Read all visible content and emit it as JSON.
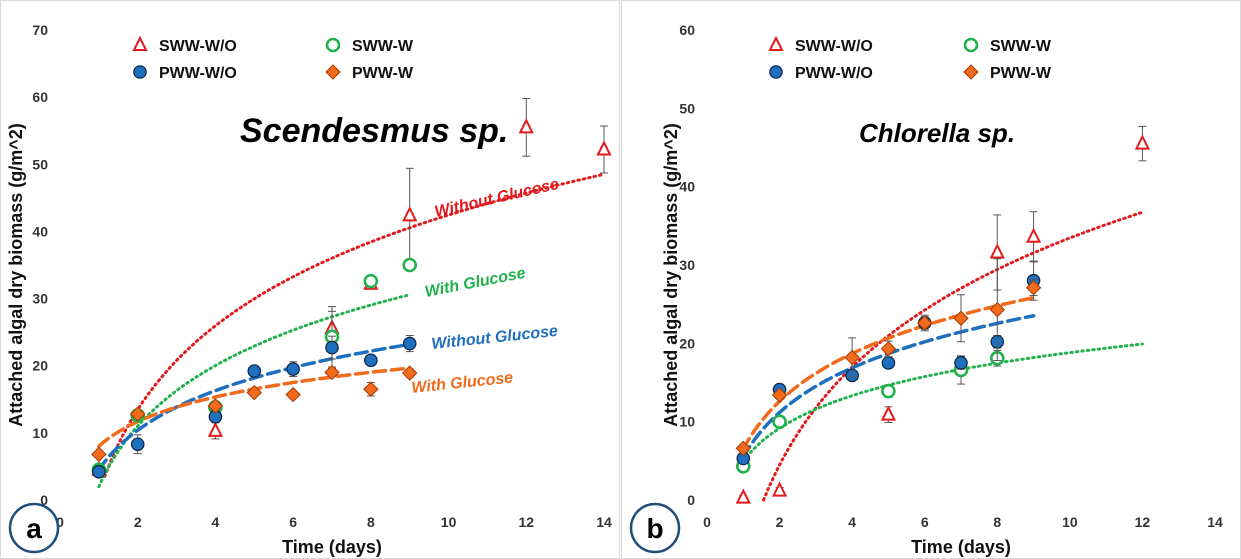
{
  "chart_data": [
    {
      "type": "scatter",
      "panel_label": "a",
      "title": "Scendesmus sp.",
      "xlabel": "Time (days)",
      "ylabel": "Attached algal dry biomass (g/m^2)",
      "xlim": [
        0,
        14
      ],
      "ylim": [
        0,
        70
      ],
      "xticks": [
        "0",
        "2",
        "4",
        "6",
        "8",
        "10",
        "12",
        "14"
      ],
      "yticks": [
        "0",
        "10",
        "20",
        "30",
        "40",
        "50",
        "60",
        "70"
      ],
      "grid": false,
      "legend_position": "top-left",
      "series": [
        {
          "name": "SWW-W/O",
          "marker": "triangle",
          "color": "#e31a1c",
          "points": [
            [
              1,
              4.5
            ],
            [
              4,
              10.3
            ],
            [
              7,
              25.6
            ],
            [
              8,
              32.2
            ],
            [
              9,
              42.4
            ],
            [
              12,
              55.5
            ],
            [
              14,
              52.2
            ]
          ],
          "errors": [
            0.5,
            1.2,
            2.5,
            0.6,
            7.0,
            4.3,
            3.5
          ]
        },
        {
          "name": "SWW-W",
          "marker": "circle-open",
          "color": "#22b14c",
          "points": [
            [
              1,
              4.5
            ],
            [
              2,
              12.6
            ],
            [
              4,
              13.8
            ],
            [
              7,
              24.3
            ],
            [
              8,
              32.6
            ],
            [
              9,
              35.0
            ]
          ],
          "errors": [
            0.4,
            0.6,
            0.8,
            4.5,
            0.8,
            0.8
          ]
        },
        {
          "name": "PWW-W/O",
          "marker": "circle-filled",
          "color": "#1f6fbf",
          "points": [
            [
              1,
              4.2
            ],
            [
              2,
              8.3
            ],
            [
              4,
              12.4
            ],
            [
              5,
              19.2
            ],
            [
              6,
              19.5
            ],
            [
              7,
              22.7
            ],
            [
              8,
              20.8
            ],
            [
              9,
              23.3
            ]
          ],
          "errors": [
            0.4,
            1.4,
            0.8,
            0.6,
            1.1,
            1.7,
            0.6,
            1.2
          ]
        },
        {
          "name": "PWW-W",
          "marker": "diamond",
          "color": "#f26b1d",
          "points": [
            [
              1,
              6.8
            ],
            [
              2,
              12.8
            ],
            [
              4,
              14.0
            ],
            [
              5,
              16.0
            ],
            [
              6,
              15.7
            ],
            [
              7,
              19.0
            ],
            [
              8,
              16.5
            ],
            [
              9,
              18.9
            ]
          ],
          "errors": [
            0.3,
            0.5,
            0.6,
            0.4,
            0.5,
            0.6,
            1.0,
            0.6
          ]
        }
      ],
      "trendlines": [
        {
          "label": "Without Glucose",
          "color": "#e31a1c",
          "style": "dotted",
          "type": "log",
          "a": 1.0,
          "b": 18.0,
          "x_range": [
            1.15,
            14
          ]
        },
        {
          "label": "With Glucose",
          "color": "#22b14c",
          "style": "dotted",
          "type": "log",
          "a": 2.0,
          "b": 13.0,
          "x_range": [
            1.0,
            9
          ]
        },
        {
          "label": "Without Glucose",
          "color": "#1f6fbf",
          "style": "dashed",
          "type": "log",
          "a": 4.5,
          "b": 8.5,
          "x_range": [
            1.0,
            9
          ]
        },
        {
          "label": "With Glucose",
          "color": "#f26b1d",
          "style": "dashed",
          "type": "log",
          "a": 8.0,
          "b": 5.3,
          "x_range": [
            1.0,
            9
          ]
        }
      ]
    },
    {
      "type": "scatter",
      "panel_label": "b",
      "title": "Chlorella sp.",
      "xlabel": "Time (days)",
      "ylabel": "Attached algal dry biomass (g/m^2)",
      "xlim": [
        0,
        14
      ],
      "ylim": [
        0,
        60
      ],
      "xticks": [
        "0",
        "2",
        "4",
        "6",
        "8",
        "10",
        "12",
        "14"
      ],
      "yticks": [
        "0",
        "10",
        "20",
        "30",
        "40",
        "50",
        "60"
      ],
      "grid": false,
      "legend_position": "top-left",
      "series": [
        {
          "name": "SWW-W/O",
          "marker": "triangle",
          "color": "#e31a1c",
          "points": [
            [
              1,
              0.3
            ],
            [
              2,
              1.2
            ],
            [
              5,
              10.9
            ],
            [
              8,
              31.6
            ],
            [
              9,
              33.6
            ],
            [
              12,
              45.5
            ]
          ],
          "errors": [
            0.3,
            0.4,
            1.0,
            4.8,
            3.2,
            2.2
          ]
        },
        {
          "name": "SWW-W",
          "marker": "circle-open",
          "color": "#22b14c",
          "points": [
            [
              1,
              4.3
            ],
            [
              2,
              10.0
            ],
            [
              5,
              13.9
            ],
            [
              7,
              16.6
            ],
            [
              8,
              18.1
            ]
          ],
          "errors": [
            0.4,
            0.6,
            0.8,
            1.8,
            1.0
          ]
        },
        {
          "name": "PWW-W/O",
          "marker": "circle-filled",
          "color": "#1f6fbf",
          "points": [
            [
              1,
              5.3
            ],
            [
              2,
              14.1
            ],
            [
              4,
              15.9
            ],
            [
              5,
              17.5
            ],
            [
              6,
              22.6
            ],
            [
              7,
              17.5
            ],
            [
              8,
              20.2
            ],
            [
              9,
              28.0
            ]
          ],
          "errors": [
            0.5,
            0.4,
            0.5,
            0.6,
            0.8,
            0.8,
            0.8,
            2.5
          ]
        },
        {
          "name": "PWW-W",
          "marker": "diamond",
          "color": "#f26b1d",
          "points": [
            [
              1,
              6.6
            ],
            [
              2,
              13.4
            ],
            [
              4,
              18.2
            ],
            [
              5,
              19.3
            ],
            [
              6,
              22.6
            ],
            [
              7,
              23.2
            ],
            [
              8,
              24.3
            ],
            [
              9,
              27.1
            ]
          ],
          "errors": [
            0.4,
            0.5,
            2.5,
            1.0,
            1.0,
            3.0,
            6.5,
            1.0
          ]
        }
      ],
      "trendlines": [
        {
          "label": "",
          "color": "#e31a1c",
          "style": "dotted",
          "type": "log",
          "a": -8.0,
          "b": 18.0,
          "x_range": [
            1.56,
            12
          ]
        },
        {
          "label": "",
          "color": "#22b14c",
          "style": "dotted",
          "type": "log",
          "a": 5.0,
          "b": 6.0,
          "x_range": [
            1.0,
            12
          ]
        },
        {
          "label": "",
          "color": "#1f6fbf",
          "style": "dashed",
          "type": "log",
          "a": 5.5,
          "b": 8.2,
          "x_range": [
            1.0,
            9
          ]
        },
        {
          "label": "",
          "color": "#f26b1d",
          "style": "dashed",
          "type": "log",
          "a": 6.5,
          "b": 8.8,
          "x_range": [
            1.0,
            9
          ]
        }
      ]
    }
  ]
}
